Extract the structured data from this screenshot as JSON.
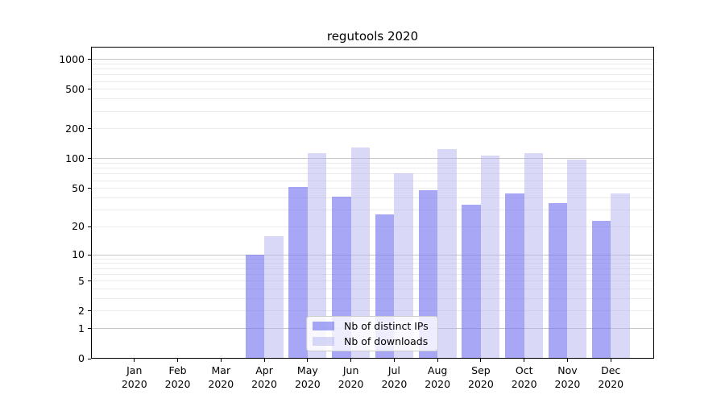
{
  "chart_data": {
    "type": "bar",
    "title": "regutools 2020",
    "categories": [
      "Jan",
      "Feb",
      "Mar",
      "Apr",
      "May",
      "Jun",
      "Jul",
      "Aug",
      "Sep",
      "Oct",
      "Nov",
      "Dec"
    ],
    "x_year": "2020",
    "series": [
      {
        "name": "Nb of distinct IPs",
        "color": "#7878f0",
        "alpha": 0.65,
        "values": [
          0,
          0,
          0,
          10,
          52,
          41,
          27,
          48,
          34,
          44,
          35,
          23
        ]
      },
      {
        "name": "Nb of downloads",
        "color": "#b4b4f0",
        "alpha": 0.5,
        "values": [
          0,
          0,
          0,
          16,
          115,
          130,
          71,
          125,
          107,
          115,
          98,
          44
        ]
      }
    ],
    "yscale": "log1p",
    "ylim": [
      0,
      1340
    ],
    "yticks": [
      0,
      1,
      2,
      5,
      10,
      20,
      50,
      100,
      200,
      500,
      1000
    ],
    "grid": {
      "major_decades": [
        1,
        10,
        100,
        1000
      ],
      "minor_multipliers": [
        2,
        3,
        4,
        5,
        6,
        7,
        8,
        9
      ]
    },
    "legend_position": "lower center",
    "colors": {
      "major_grid": "#c6c6c6",
      "minor_grid": "#ebebeb",
      "axis": "#000000",
      "text": "#000000",
      "background": "#ffffff"
    }
  }
}
